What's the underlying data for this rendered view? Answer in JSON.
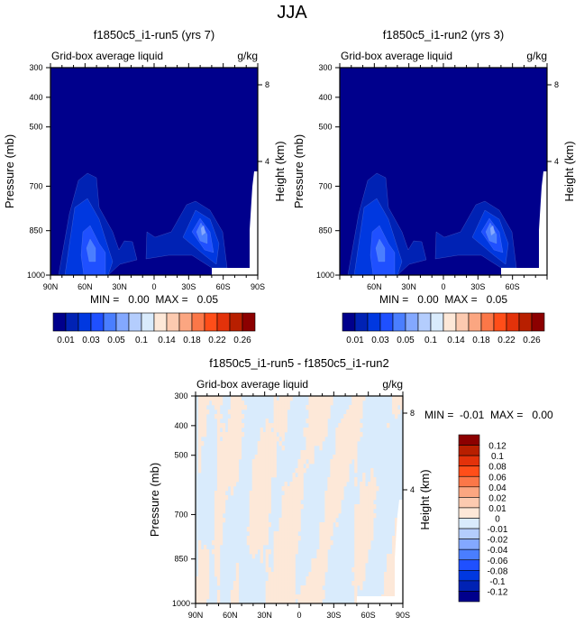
{
  "figure_title": "JJA",
  "chart_data": [
    {
      "type": "contour",
      "title": "f1850c5_i1-run5 (yrs 7)",
      "left_label": "Grid-box average liquid",
      "right_label": "g/kg",
      "ylabel": "Pressure (mb)",
      "y2label": "Height (km)",
      "x_tick_labels": [
        "90N",
        "60N",
        "30N",
        "0",
        "30S",
        "60S",
        "90S"
      ],
      "y_ticks": [
        300,
        400,
        500,
        700,
        850,
        1000
      ],
      "ylim": [
        300,
        1000
      ],
      "y2_ticks": [
        8,
        4
      ],
      "stats": "MIN =   0.00  MAX =   0.05",
      "colorbar": {
        "labels": [
          "0.01",
          "0.03",
          "0.05",
          "0.1",
          "0.14",
          "0.18",
          "0.22",
          "0.26"
        ],
        "colors": [
          "#00008c",
          "#0022b4",
          "#0038e0",
          "#1f50ff",
          "#4a7eff",
          "#83a8ff",
          "#b4cdfd",
          "#d9ebfc",
          "#fde8d8",
          "#fccab0",
          "#fba681",
          "#fb7748",
          "#ff4e19",
          "#e3320a",
          "#b81f00",
          "#8c0000"
        ]
      }
    },
    {
      "type": "contour",
      "title": "f1850c5_i1-run2 (yrs 3)",
      "left_label": "Grid-box average liquid",
      "right_label": "g/kg",
      "ylabel": "Pressure (mb)",
      "y2label": "Height (km)",
      "x_tick_labels": [
        "",
        "60N",
        "30N",
        "0",
        "30S",
        "60S",
        ""
      ],
      "y_ticks": [
        300,
        400,
        500,
        700,
        850,
        1000
      ],
      "ylim": [
        300,
        1000
      ],
      "y2_ticks": [
        8,
        4
      ],
      "stats": "MIN =   0.00  MAX =   0.05",
      "colorbar": {
        "labels": [
          "0.01",
          "0.03",
          "0.05",
          "0.1",
          "0.14",
          "0.18",
          "0.22",
          "0.26"
        ],
        "colors": [
          "#00008c",
          "#0022b4",
          "#0038e0",
          "#1f50ff",
          "#4a7eff",
          "#83a8ff",
          "#b4cdfd",
          "#d9ebfc",
          "#fde8d8",
          "#fccab0",
          "#fba681",
          "#fb7748",
          "#ff4e19",
          "#e3320a",
          "#b81f00",
          "#8c0000"
        ]
      }
    },
    {
      "type": "contour",
      "title": "f1850c5_i1-run5 - f1850c5_i1-run2",
      "left_label": "Grid-box average liquid",
      "right_label": "g/kg",
      "ylabel": "Pressure (mb)",
      "y2label": "Height (km)",
      "x_tick_labels": [
        "90N",
        "60N",
        "30N",
        "0",
        "30S",
        "60S",
        "90S"
      ],
      "y_ticks": [
        300,
        400,
        500,
        700,
        850,
        1000
      ],
      "ylim": [
        300,
        1000
      ],
      "y2_ticks": [
        8,
        4
      ],
      "stats": "MIN =  -0.01  MAX =   0.00",
      "colorbar": {
        "labels": [
          "0.12",
          "0.1",
          "0.08",
          "0.06",
          "0.04",
          "0.02",
          "0.01",
          "0",
          "-0.01",
          "-0.02",
          "-0.04",
          "-0.06",
          "-0.08",
          "-0.1",
          "-0.12"
        ],
        "colors": [
          "#8c0000",
          "#b81f00",
          "#e3320a",
          "#ff4e19",
          "#fb7748",
          "#fba681",
          "#fccab0",
          "#fde8d8",
          "#d9ebfc",
          "#b4cdfd",
          "#83a8ff",
          "#4a7eff",
          "#1f50ff",
          "#0038e0",
          "#0022b4",
          "#00008c"
        ]
      }
    }
  ]
}
